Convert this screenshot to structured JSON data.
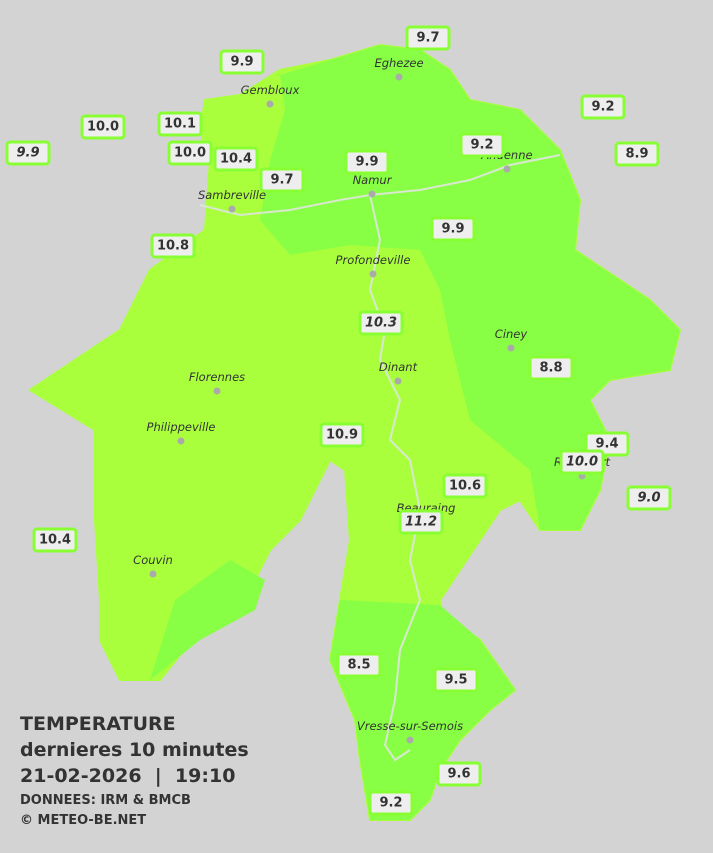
{
  "title": {
    "line1": "TEMPERATURE",
    "line2": "dernieres 10 minutes",
    "line3": "21-02-2026  |  19:10",
    "source": "DONNEES: IRM & BMCB",
    "copyright": "© METEO-BE.NET"
  },
  "cities": [
    "Eghezee",
    "Gembloux",
    "Andenne",
    "Namur",
    "Sambreville",
    "Profondeville",
    "Ciney",
    "Dinant",
    "Florennes",
    "Philippeville",
    "Rochefort",
    "Beauraing",
    "Couvin",
    "Vresse-sur-Semois"
  ],
  "stations": [
    "9.7",
    "9.9",
    "9.2",
    "10.0",
    "10.1",
    "9.9",
    "10.0",
    "10.4",
    "9.2",
    "8.9",
    "9.9",
    "9.7",
    "9.9",
    "10.8",
    "10.3",
    "8.8",
    "10.9",
    "9.4",
    "10.0",
    "9.0",
    "10.6",
    "11.2",
    "10.4",
    "8.5",
    "9.5",
    "9.6",
    "9.2"
  ]
}
